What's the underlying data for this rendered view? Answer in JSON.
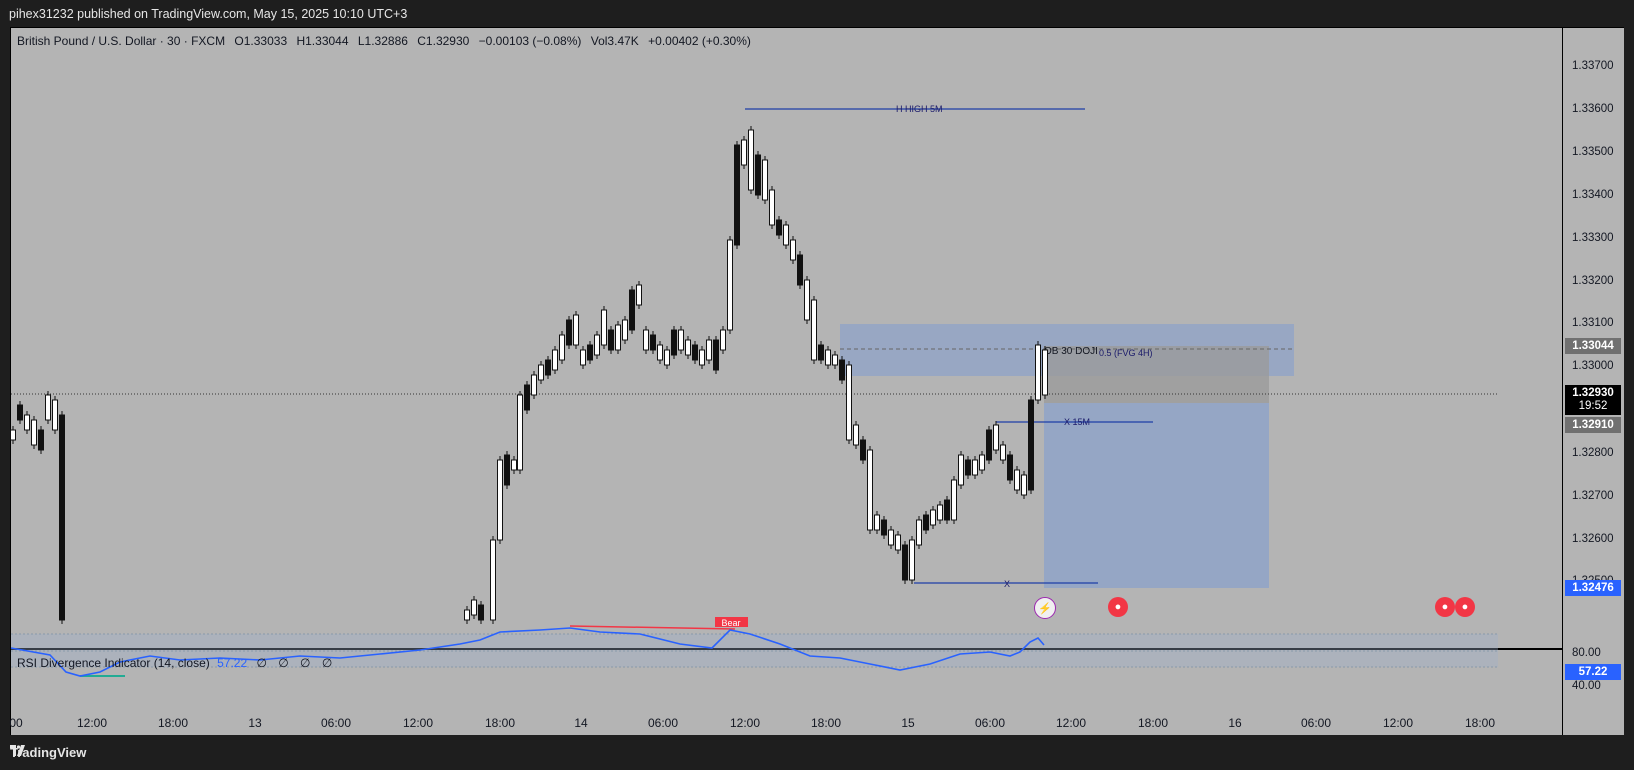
{
  "header": {
    "published": "pihex31232 published on TradingView.com, May 15, 2025 10:10 UTC+3"
  },
  "legend": {
    "symbol": "British Pound / U.S. Dollar · 30 · FXCM",
    "open": "O1.33033",
    "high": "H1.33044",
    "low": "L1.32886",
    "close": "C1.32930",
    "change": "−0.00103 (−0.08%)",
    "volume": "Vol3.47K",
    "vol_change": "+0.00402 (+0.30%)"
  },
  "price_axis": {
    "labels": [
      "1.33700",
      "1.33600",
      "1.33500",
      "1.33400",
      "1.33300",
      "1.33200",
      "1.33100",
      "1.33000",
      "1.32800",
      "1.32700",
      "1.32600",
      "1.32500"
    ],
    "tags": {
      "high": "1.33044",
      "last": "1.32930",
      "countdown": "19:52",
      "entry": "1.32910",
      "target": "1.32476"
    }
  },
  "time_axis": [
    "00",
    "12:00",
    "18:00",
    "13",
    "06:00",
    "12:00",
    "18:00",
    "14",
    "06:00",
    "12:00",
    "18:00",
    "15",
    "06:00",
    "12:00",
    "18:00",
    "16",
    "06:00",
    "12:00",
    "18:00"
  ],
  "annotations": {
    "high_5m": "H HIGH 5M",
    "ob_doji": "OB 30 DOJI",
    "fvg": "0.5 (FVG 4H)",
    "x_15m": "X 15M",
    "x_low": "X",
    "bear_label": "Bear"
  },
  "rsi": {
    "title": "RSI Divergence Indicator (14, close)",
    "value": "57.22",
    "extras": "∅ ∅ ∅ ∅",
    "levels": [
      "80.00",
      "40.00"
    ],
    "tag": "57.22"
  },
  "footer": {
    "brand": "TradingView"
  },
  "colors": {
    "background": "#b4b4b4",
    "zone": "#8fa3c8",
    "rsi_line": "#2962ff",
    "blue_tag": "#2962ff",
    "bear": "#f23645"
  }
}
